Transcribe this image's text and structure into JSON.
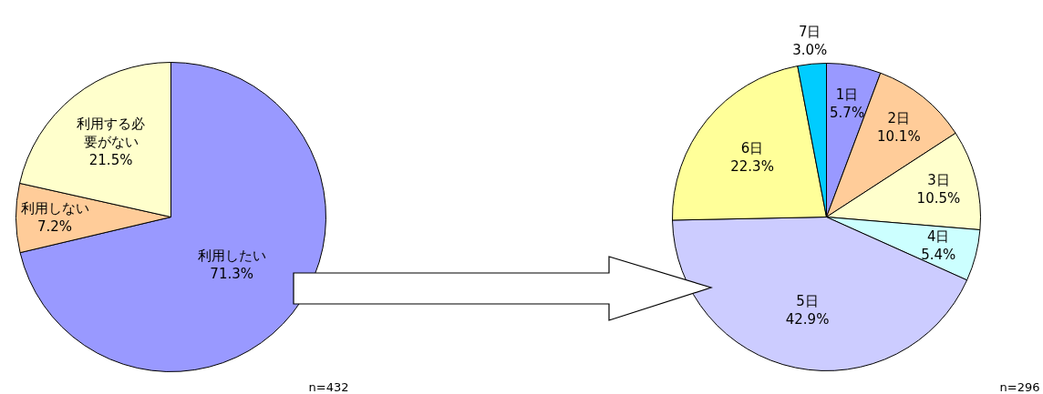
{
  "chart_data": [
    {
      "type": "pie",
      "categories": [
        "利用したい",
        "利用しない",
        "利用する必要がない"
      ],
      "values": [
        71.3,
        7.2,
        21.5
      ],
      "colors": [
        "#9999ff",
        "#ffcc99",
        "#ffffcc"
      ],
      "value_labels": [
        "71.3%",
        "7.2%",
        "21.5%"
      ],
      "annotations": [
        "n=432"
      ]
    },
    {
      "type": "pie",
      "categories": [
        "1日",
        "2日",
        "3日",
        "4日",
        "5日",
        "6日",
        "7日"
      ],
      "values": [
        5.7,
        10.1,
        10.5,
        5.4,
        42.9,
        22.3,
        3.0
      ],
      "colors": [
        "#9999ff",
        "#ffcc99",
        "#ffffcc",
        "#ccffff",
        "#ccccff",
        "#ffff99",
        "#00ccff"
      ],
      "value_labels": [
        "5.7%",
        "10.1%",
        "10.5%",
        "5.4%",
        "42.9%",
        "22.3%",
        "3.0%"
      ],
      "annotations": [
        "n=296"
      ]
    }
  ]
}
